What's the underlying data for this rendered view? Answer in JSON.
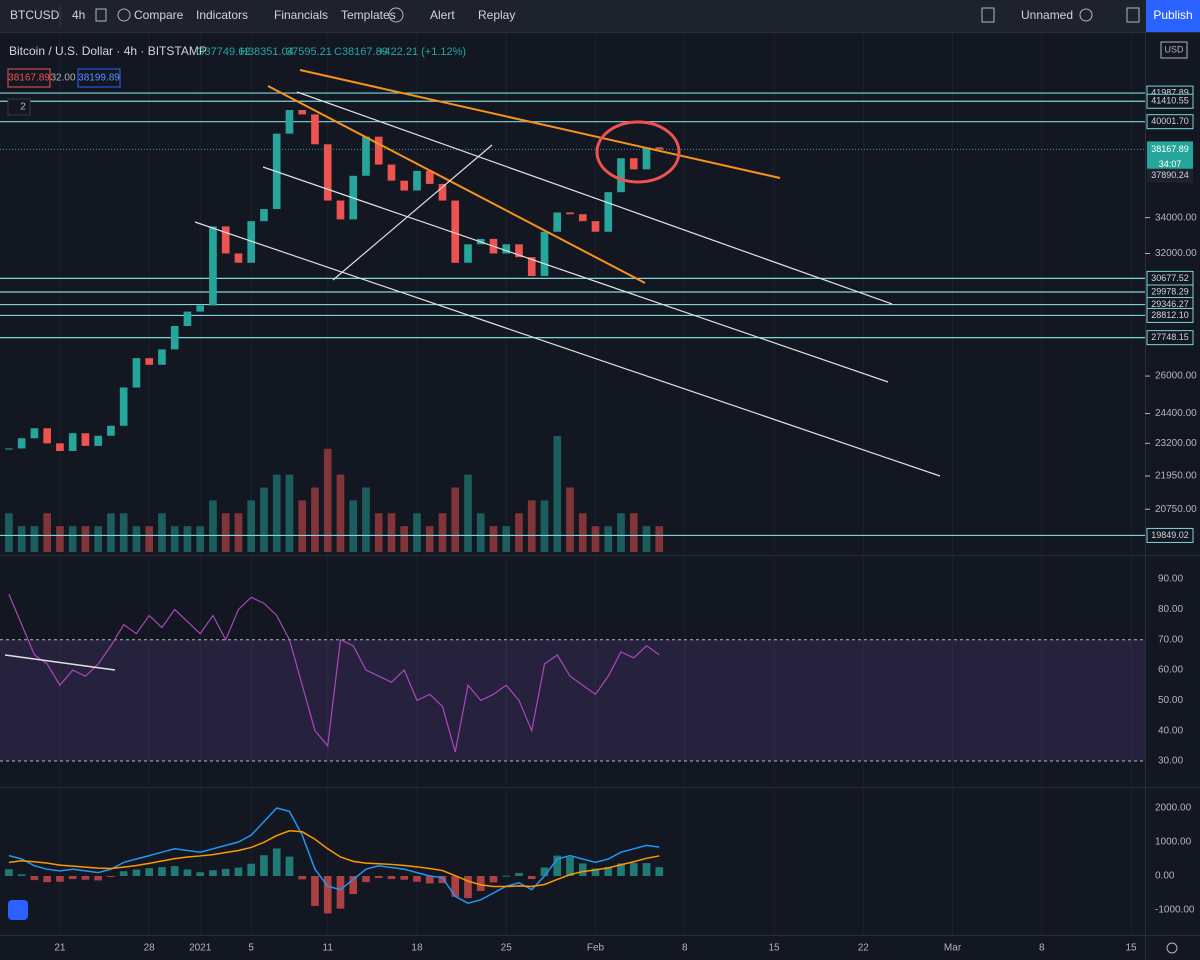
{
  "toolbar": {
    "symbol": "BTCUSD",
    "interval": "4h",
    "buttons": [
      "Compare",
      "Indicators",
      "Financials",
      "Templates",
      "Alert",
      "Replay"
    ],
    "layout_name": "Unnamed",
    "publish": "Publish"
  },
  "legend": {
    "title": "Bitcoin / U.S. Dollar · 4h · BITSTAMP",
    "open": "O37749.62",
    "high": "H38351.04",
    "low": "37595.21",
    "close": "C38167.89",
    "change": "+422.21 (+1.12%)",
    "bid": "38167.89",
    "spread": "32.00",
    "ask": "38199.89",
    "collapsed": "2"
  },
  "chart_data": {
    "type": "candlestick",
    "currency": "USD",
    "log_scale": true,
    "close": [
      23000,
      23400,
      23800,
      23200,
      22900,
      23600,
      23100,
      23500,
      23900,
      25500,
      26800,
      26500,
      27200,
      28300,
      29000,
      29300,
      33500,
      32000,
      31500,
      33800,
      34500,
      39200,
      40800,
      40500,
      38500,
      35000,
      33900,
      36500,
      39000,
      37200,
      36200,
      35600,
      36800,
      36000,
      35000,
      31500,
      32500,
      32800,
      32000,
      32500,
      31800,
      30800,
      33200,
      34300,
      34200,
      33800,
      33200,
      35500,
      37600,
      36900,
      38300,
      38167.89
    ],
    "volume": [
      3,
      2,
      2,
      3,
      2,
      2,
      2,
      2,
      3,
      3,
      2,
      2,
      3,
      2,
      2,
      2,
      4,
      3,
      3,
      4,
      5,
      6,
      6,
      4,
      5,
      8,
      6,
      4,
      5,
      3,
      3,
      2,
      3,
      2,
      3,
      5,
      6,
      3,
      2,
      2,
      3,
      4,
      4,
      9,
      5,
      3,
      2,
      2,
      3,
      3,
      2,
      2
    ],
    "volume_ylim": [
      0,
      40
    ],
    "ylim": [
      19300,
      46250
    ],
    "yticks": [
      {
        "value": 34000,
        "label": "34000.00"
      },
      {
        "value": 32000,
        "label": "32000.00"
      },
      {
        "value": 26000,
        "label": "26000.00"
      },
      {
        "value": 24400,
        "label": "24400.00"
      },
      {
        "value": 23200,
        "label": "23200.00"
      },
      {
        "value": 21950,
        "label": "21950.00"
      },
      {
        "value": 20750,
        "label": "20750.00"
      }
    ],
    "levels": [
      41987.89,
      41410.55,
      {
        "value": 40001.7,
        "label": "40001.70"
      },
      30677.52,
      29978.29,
      29346.27,
      {
        "value": 28812.1,
        "label": "28812.10"
      },
      27748.15,
      19849.02
    ],
    "last_price": 38167.89,
    "countdown": "34:07",
    "prev_price": 37890.24,
    "xlim": [
      -0.7,
      88.7
    ],
    "xticks": [
      {
        "value": 4,
        "label": "21"
      },
      {
        "value": 11,
        "label": "28"
      },
      {
        "value": 15,
        "label": "2021"
      },
      {
        "value": 19,
        "label": "5"
      },
      {
        "value": 25,
        "label": "11"
      },
      {
        "value": 32,
        "label": "18"
      },
      {
        "value": 39,
        "label": "25"
      },
      {
        "value": 46,
        "label": "Feb"
      },
      {
        "value": 53,
        "label": "8"
      },
      {
        "value": 60,
        "label": "15"
      },
      {
        "value": 67,
        "label": "22"
      },
      {
        "value": 74,
        "label": "Mar"
      },
      {
        "value": 81,
        "label": "8"
      },
      {
        "value": 88,
        "label": "15"
      }
    ],
    "color_up": "#26a69a",
    "color_down": "#ef5350",
    "level_color": "#7fd6d6"
  },
  "rsi": {
    "values": [
      85,
      75,
      65,
      62,
      55,
      60,
      58,
      62,
      68,
      75,
      72,
      78,
      74,
      80,
      76,
      72,
      78,
      70,
      80,
      84,
      82,
      78,
      70,
      55,
      40,
      35,
      70,
      68,
      60,
      58,
      56,
      60,
      50,
      52,
      48,
      33,
      55,
      50,
      52,
      55,
      50,
      40,
      62,
      65,
      58,
      55,
      52,
      58,
      66,
      64,
      68,
      65
    ],
    "ylim": [
      22.1,
      93
    ],
    "band": [
      30,
      70
    ],
    "color": "#ab47bc",
    "yticks": [
      {
        "value": 90,
        "label": "90.00"
      },
      {
        "value": 80,
        "label": "80.00"
      },
      {
        "value": 70,
        "label": "70.00"
      },
      {
        "value": 60,
        "label": "60.00"
      },
      {
        "value": 50,
        "label": "50.00"
      },
      {
        "value": 40,
        "label": "40.00"
      },
      {
        "value": 30,
        "label": "30.00"
      }
    ]
  },
  "macd": {
    "macd": [
      600,
      500,
      300,
      200,
      150,
      200,
      150,
      100,
      200,
      400,
      500,
      600,
      700,
      800,
      750,
      700,
      800,
      900,
      1000,
      1200,
      1600,
      2000,
      1900,
      1200,
      200,
      -300,
      -400,
      -100,
      200,
      300,
      250,
      200,
      100,
      0,
      -50,
      -600,
      -800,
      -700,
      -500,
      -300,
      -200,
      -400,
      0,
      500,
      600,
      500,
      400,
      500,
      700,
      800,
      900,
      850
    ],
    "signal": [
      400,
      450,
      420,
      380,
      320,
      290,
      260,
      230,
      220,
      260,
      310,
      370,
      440,
      510,
      560,
      590,
      630,
      690,
      750,
      840,
      990,
      1190,
      1330,
      1300,
      1080,
      800,
      560,
      430,
      380,
      360,
      340,
      310,
      270,
      220,
      160,
      10,
      -150,
      -260,
      -310,
      -310,
      -290,
      -310,
      -250,
      -100,
      40,
      130,
      180,
      240,
      330,
      420,
      520,
      590
    ],
    "ylim": [
      -1735,
      2529
    ],
    "macd_color": "#2196f3",
    "signal_color": "#ff9800",
    "yticks": [
      {
        "value": 2000,
        "label": "2000.00"
      },
      {
        "value": 1000,
        "label": "1000.00"
      },
      {
        "value": 0,
        "label": "0.00"
      },
      {
        "value": -1000,
        "label": "-1000.00"
      }
    ]
  }
}
